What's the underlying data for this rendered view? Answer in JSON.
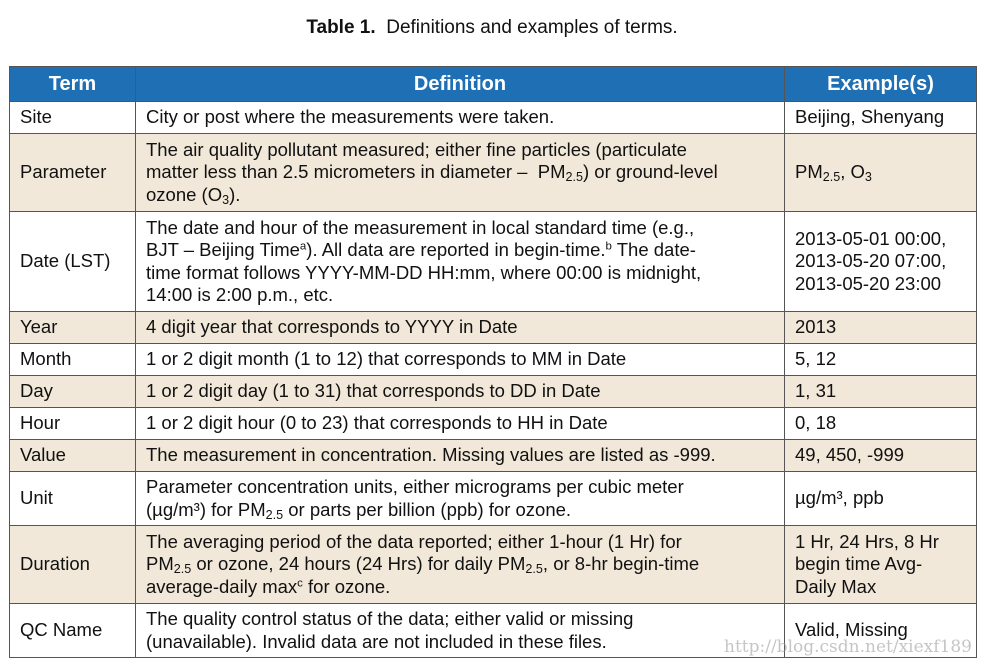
{
  "caption": {
    "label": "Table 1.",
    "text": "Definitions and examples of terms."
  },
  "headers": {
    "term": "Term",
    "definition": "Definition",
    "examples": "Example(s)"
  },
  "rows": {
    "site": {
      "term": "Site",
      "def": [
        "City or post where the measurements were taken."
      ],
      "ex": [
        "Beijing, Shenyang"
      ]
    },
    "parameter": {
      "term": "Parameter",
      "def": [
        "The air quality pollutant measured; either fine particles (particulate",
        "matter less than 2.5 micrometers in diameter –",
        "PM",
        "2.5",
        ") or ground-level",
        "ozone (O",
        "3",
        ")."
      ],
      "ex": [
        "PM",
        "2.5",
        ", O",
        "3"
      ]
    },
    "date": {
      "term": "Date (LST)",
      "def": [
        "The date and hour of the measurement in local standard time (e.g.,",
        "BJT – Beijing Time",
        "a",
        ").  All data are reported in begin-time.",
        "b",
        " The date-",
        "time format follows YYYY-MM-DD HH:mm, where 00:00 is midnight,",
        "14:00 is 2:00 p.m., etc."
      ],
      "ex": [
        "2013-05-01 00:00,",
        "2013-05-20 07:00,",
        "2013-05-20 23:00"
      ]
    },
    "year": {
      "term": "Year",
      "def": [
        "4 digit year that corresponds to YYYY in Date"
      ],
      "ex": [
        "2013"
      ]
    },
    "month": {
      "term": "Month",
      "def": [
        "1 or 2 digit month (1 to 12) that corresponds to MM in Date"
      ],
      "ex": [
        "5, 12"
      ]
    },
    "day": {
      "term": "Day",
      "def": [
        "1 or 2 digit day (1 to 31) that corresponds to DD in Date"
      ],
      "ex": [
        "1, 31"
      ]
    },
    "hour": {
      "term": "Hour",
      "def": [
        "1 or 2 digit hour (0 to 23) that corresponds to HH in Date"
      ],
      "ex": [
        "0, 18"
      ]
    },
    "value": {
      "term": "Value",
      "def": [
        "The measurement in concentration.  Missing values are listed as -999."
      ],
      "ex": [
        "49, 450, -999"
      ]
    },
    "unit": {
      "term": "Unit",
      "def": [
        "Parameter concentration units, either micrograms per cubic meter",
        "(µg/m³) for PM",
        "2.5",
        " or parts per billion (ppb) for ozone."
      ],
      "ex": [
        "µg/m³, ppb"
      ]
    },
    "duration": {
      "term": "Duration",
      "def": [
        "The averaging period of the data reported; either 1-hour (1 Hr) for",
        "PM",
        "2.5",
        " or ozone, 24 hours (24 Hrs) for daily PM",
        "2.5",
        ", or 8-hr begin-time",
        "average-daily max",
        "c",
        " for ozone."
      ],
      "ex": [
        "1 Hr, 24 Hrs, 8 Hr",
        "begin time Avg-",
        "Daily Max"
      ]
    },
    "qc": {
      "term": "QC Name",
      "def": [
        "The quality control status of the data; either valid or missing",
        "(unavailable).  Invalid data are not included in these files."
      ],
      "ex": [
        "Valid, Missing"
      ]
    }
  },
  "watermark": "http://blog.csdn.net/xiexf189"
}
